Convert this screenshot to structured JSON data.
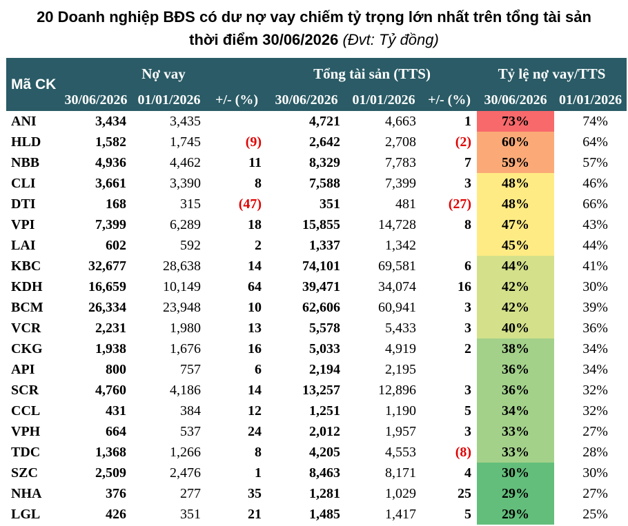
{
  "title": {
    "line1": "20 Doanh nghiệp BĐS có dư nợ vay chiếm tỷ trọng lớn nhất trên tổng tài sản",
    "line2": "thời điểm 30/06/2026",
    "unit": "(Đvt: Tỷ đồng)"
  },
  "header": {
    "code": "Mã CK",
    "group_debt": "Nợ vay",
    "group_assets": "Tổng tài sản (TTS)",
    "group_ratio": "Tỷ lệ nợ vay/TTS",
    "col_cur": "30/06/2026",
    "col_prev": "01/01/2026",
    "col_change": "+/- (%)"
  },
  "chart_data": {
    "type": "table",
    "columns": [
      "Mã CK",
      "Nợ vay 30/06/2026",
      "Nợ vay 01/01/2026",
      "Nợ vay +/- (%)",
      "Tổng tài sản 30/06/2026",
      "Tổng tài sản 01/01/2026",
      "Tổng tài sản +/- (%)",
      "Tỷ lệ nợ vay/TTS 30/06/2026",
      "Tỷ lệ nợ vay/TTS 01/01/2026"
    ],
    "rows": [
      {
        "code": "ANI",
        "debt_cur": "3,434",
        "debt_prev": "3,435",
        "debt_chg": "",
        "ta_cur": "4,721",
        "ta_prev": "4,663",
        "ta_chg": "1",
        "ratio_cur": "73%",
        "ratio_prev": "74%"
      },
      {
        "code": "HLD",
        "debt_cur": "1,582",
        "debt_prev": "1,745",
        "debt_chg": "(9)",
        "ta_cur": "2,642",
        "ta_prev": "2,708",
        "ta_chg": "(2)",
        "ratio_cur": "60%",
        "ratio_prev": "64%"
      },
      {
        "code": "NBB",
        "debt_cur": "4,936",
        "debt_prev": "4,462",
        "debt_chg": "11",
        "ta_cur": "8,329",
        "ta_prev": "7,783",
        "ta_chg": "7",
        "ratio_cur": "59%",
        "ratio_prev": "57%"
      },
      {
        "code": "CLI",
        "debt_cur": "3,661",
        "debt_prev": "3,390",
        "debt_chg": "8",
        "ta_cur": "7,588",
        "ta_prev": "7,399",
        "ta_chg": "3",
        "ratio_cur": "48%",
        "ratio_prev": "46%"
      },
      {
        "code": "DTI",
        "debt_cur": "168",
        "debt_prev": "315",
        "debt_chg": "(47)",
        "ta_cur": "351",
        "ta_prev": "481",
        "ta_chg": "(27)",
        "ratio_cur": "48%",
        "ratio_prev": "66%"
      },
      {
        "code": "VPI",
        "debt_cur": "7,399",
        "debt_prev": "6,289",
        "debt_chg": "18",
        "ta_cur": "15,855",
        "ta_prev": "14,728",
        "ta_chg": "8",
        "ratio_cur": "47%",
        "ratio_prev": "43%"
      },
      {
        "code": "LAI",
        "debt_cur": "602",
        "debt_prev": "592",
        "debt_chg": "2",
        "ta_cur": "1,337",
        "ta_prev": "1,342",
        "ta_chg": "",
        "ratio_cur": "45%",
        "ratio_prev": "44%"
      },
      {
        "code": "KBC",
        "debt_cur": "32,677",
        "debt_prev": "28,638",
        "debt_chg": "14",
        "ta_cur": "74,101",
        "ta_prev": "69,581",
        "ta_chg": "6",
        "ratio_cur": "44%",
        "ratio_prev": "41%"
      },
      {
        "code": "KDH",
        "debt_cur": "16,659",
        "debt_prev": "10,149",
        "debt_chg": "64",
        "ta_cur": "39,471",
        "ta_prev": "34,074",
        "ta_chg": "16",
        "ratio_cur": "42%",
        "ratio_prev": "30%"
      },
      {
        "code": "BCM",
        "debt_cur": "26,334",
        "debt_prev": "23,948",
        "debt_chg": "10",
        "ta_cur": "62,606",
        "ta_prev": "60,941",
        "ta_chg": "3",
        "ratio_cur": "42%",
        "ratio_prev": "39%"
      },
      {
        "code": "VCR",
        "debt_cur": "2,231",
        "debt_prev": "1,980",
        "debt_chg": "13",
        "ta_cur": "5,578",
        "ta_prev": "5,433",
        "ta_chg": "3",
        "ratio_cur": "40%",
        "ratio_prev": "36%"
      },
      {
        "code": "CKG",
        "debt_cur": "1,938",
        "debt_prev": "1,676",
        "debt_chg": "16",
        "ta_cur": "5,033",
        "ta_prev": "4,919",
        "ta_chg": "2",
        "ratio_cur": "38%",
        "ratio_prev": "34%"
      },
      {
        "code": "API",
        "debt_cur": "800",
        "debt_prev": "757",
        "debt_chg": "6",
        "ta_cur": "2,194",
        "ta_prev": "2,195",
        "ta_chg": "",
        "ratio_cur": "36%",
        "ratio_prev": "34%"
      },
      {
        "code": "SCR",
        "debt_cur": "4,760",
        "debt_prev": "4,186",
        "debt_chg": "14",
        "ta_cur": "13,257",
        "ta_prev": "12,896",
        "ta_chg": "3",
        "ratio_cur": "36%",
        "ratio_prev": "32%"
      },
      {
        "code": "CCL",
        "debt_cur": "431",
        "debt_prev": "384",
        "debt_chg": "12",
        "ta_cur": "1,251",
        "ta_prev": "1,190",
        "ta_chg": "5",
        "ratio_cur": "34%",
        "ratio_prev": "32%"
      },
      {
        "code": "VPH",
        "debt_cur": "664",
        "debt_prev": "537",
        "debt_chg": "24",
        "ta_cur": "2,012",
        "ta_prev": "1,957",
        "ta_chg": "3",
        "ratio_cur": "33%",
        "ratio_prev": "27%"
      },
      {
        "code": "TDC",
        "debt_cur": "1,368",
        "debt_prev": "1,266",
        "debt_chg": "8",
        "ta_cur": "4,205",
        "ta_prev": "4,553",
        "ta_chg": "(8)",
        "ratio_cur": "33%",
        "ratio_prev": "28%"
      },
      {
        "code": "SZC",
        "debt_cur": "2,509",
        "debt_prev": "2,476",
        "debt_chg": "1",
        "ta_cur": "8,463",
        "ta_prev": "8,171",
        "ta_chg": "4",
        "ratio_cur": "30%",
        "ratio_prev": "30%"
      },
      {
        "code": "NHA",
        "debt_cur": "376",
        "debt_prev": "277",
        "debt_chg": "35",
        "ta_cur": "1,281",
        "ta_prev": "1,029",
        "ta_chg": "25",
        "ratio_cur": "29%",
        "ratio_prev": "27%"
      },
      {
        "code": "LGL",
        "debt_cur": "426",
        "debt_prev": "351",
        "debt_chg": "21",
        "ta_cur": "1,485",
        "ta_prev": "1,417",
        "ta_chg": "5",
        "ratio_cur": "29%",
        "ratio_prev": "25%"
      }
    ],
    "heatmap_colors": [
      "#f8696b",
      "#fa9a72",
      "#fbaa77",
      "#fdd47f",
      "#ffeb84",
      "#d4e18a",
      "#a3d18a",
      "#63be7b"
    ],
    "negative_color": "#e00000",
    "header_color": "#2a5b66"
  }
}
